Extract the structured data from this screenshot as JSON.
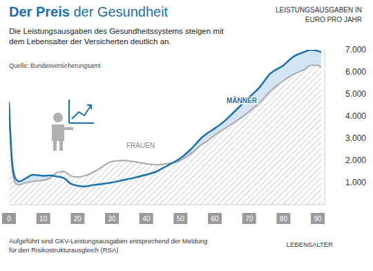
{
  "chart_data": {
    "type": "area",
    "title": "Der Preis der Gesundheit",
    "subtitle": "Die Leistungsausgaben des Gesundheitssystems steigen mit dem Lebensalter der Versicherten deutlich an.",
    "source": "Quelle: Bundesversicherungsamt",
    "note": "Aufgeführt sind GKV-Leistungsausgaben entsprechend der Meldung für den Risikostrukturausgleich (RSA)",
    "x_label": "LEBENSALTER",
    "y_label": "LEISTUNGSAUSGABEN IN EURO PRO JAHR",
    "x": [
      0,
      1,
      2,
      3,
      5,
      7,
      10,
      12,
      14,
      16,
      18,
      20,
      22,
      25,
      28,
      30,
      33,
      36,
      40,
      43,
      46,
      50,
      53,
      56,
      58,
      60,
      63,
      66,
      70,
      73,
      76,
      80,
      83,
      86,
      88,
      90,
      91
    ],
    "series": [
      {
        "name": "MÄNNER",
        "color": "#1a6fb0",
        "values": [
          4650,
          1800,
          1150,
          1050,
          1200,
          1350,
          1300,
          1320,
          1270,
          1200,
          950,
          850,
          820,
          900,
          950,
          1000,
          1100,
          1200,
          1350,
          1500,
          1750,
          2100,
          2500,
          3000,
          3250,
          3450,
          3800,
          4250,
          4850,
          5300,
          5900,
          6300,
          6700,
          6900,
          7000,
          6950,
          6900
        ]
      },
      {
        "name": "FRAUEN",
        "color": "#a8a8a8",
        "values": [
          4400,
          1500,
          950,
          900,
          1000,
          1050,
          1100,
          1200,
          1450,
          1500,
          1300,
          1250,
          1300,
          1500,
          1800,
          1950,
          2000,
          1950,
          1850,
          1800,
          1850,
          2000,
          2300,
          2700,
          2900,
          3150,
          3450,
          3750,
          4200,
          4600,
          5100,
          5600,
          5900,
          6100,
          6300,
          6300,
          6200
        ]
      }
    ],
    "xlim": [
      0,
      92
    ],
    "xticks": [
      0,
      10,
      20,
      30,
      40,
      50,
      60,
      70,
      80,
      90
    ],
    "ylim": [
      0,
      7000
    ],
    "yticks": [
      {
        "value": 1000,
        "label": "1.000"
      },
      {
        "value": 2000,
        "label": "2.000"
      },
      {
        "value": 3000,
        "label": "3.000"
      },
      {
        "value": 4000,
        "label": "4.000"
      },
      {
        "value": 5000,
        "label": "5.000"
      },
      {
        "value": 6000,
        "label": "6.000"
      },
      {
        "value": 7000,
        "label": "7.000"
      }
    ],
    "grid": false
  }
}
